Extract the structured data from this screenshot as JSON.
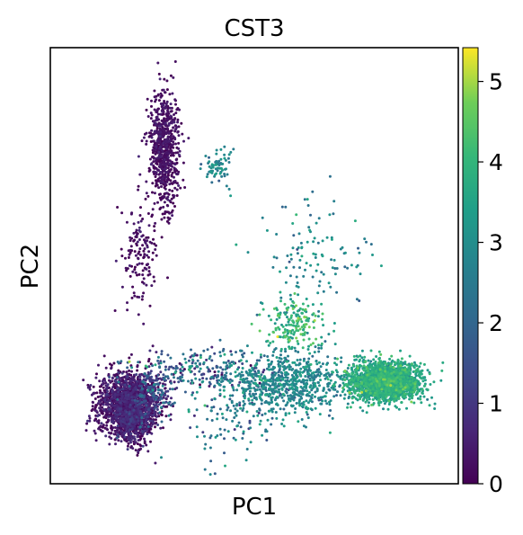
{
  "chart_data": {
    "type": "scatter",
    "title": "CST3",
    "xlabel": "PC1",
    "ylabel": "PC2",
    "x_ticks_visible": false,
    "y_ticks_visible": false,
    "grid": false,
    "legend": "none",
    "color_variable": "CST3",
    "colormap": "viridis",
    "colorbar": {
      "placement": "right",
      "range": [
        0,
        5.42
      ],
      "ticks": [
        0,
        1,
        2,
        3,
        4,
        5
      ],
      "tick_labels": [
        "0",
        "1",
        "2",
        "3",
        "4",
        "5"
      ]
    },
    "xlim": [
      0,
      100
    ],
    "ylim": [
      0,
      100
    ],
    "clusters": [
      {
        "name_hint": "A",
        "center": [
          19,
          18.5
        ],
        "spread": [
          3.8,
          3.6
        ],
        "n": 1500,
        "value_mean": 0.25,
        "value_sd": 0.35
      },
      {
        "name_hint": "B",
        "center": [
          20.5,
          14
        ],
        "spread": [
          2.2,
          3.0
        ],
        "n": 420,
        "value_mean": 0.35,
        "value_sd": 0.4
      },
      {
        "name_hint": "C",
        "center": [
          25,
          20.5
        ],
        "spread": [
          2.5,
          2.5
        ],
        "n": 160,
        "value_mean": 1.2,
        "value_sd": 0.7
      },
      {
        "name_hint": "D",
        "center": [
          28,
          77
        ],
        "spread": [
          1.8,
          6.5
        ],
        "n": 700,
        "value_mean": 0.15,
        "value_sd": 0.2
      },
      {
        "name_hint": "E",
        "center": [
          22,
          53
        ],
        "spread": [
          2.2,
          6.5
        ],
        "n": 140,
        "value_mean": 0.2,
        "value_sd": 0.2
      },
      {
        "name_hint": "F",
        "center": [
          41,
          73
        ],
        "spread": [
          1.5,
          2.0
        ],
        "n": 70,
        "value_mean": 2.8,
        "value_sd": 0.35
      },
      {
        "name_hint": "G",
        "center": [
          58,
          23
        ],
        "spread": [
          7.0,
          3.5
        ],
        "n": 700,
        "value_mean": 2.75,
        "value_sd": 0.45
      },
      {
        "name_hint": "H",
        "center": [
          82,
          23.5
        ],
        "spread": [
          4.5,
          2.2
        ],
        "n": 1900,
        "value_mean": 3.55,
        "value_sd": 0.4
      },
      {
        "name_hint": "I",
        "center": [
          60,
          36.5
        ],
        "spread": [
          3.5,
          2.8
        ],
        "n": 170,
        "value_mean": 3.9,
        "value_sd": 0.5
      },
      {
        "name_hint": "J",
        "center": [
          37,
          26
        ],
        "spread": [
          9.0,
          2.5
        ],
        "n": 230,
        "value_mean": 1.8,
        "value_sd": 1.0
      },
      {
        "name_hint": "K",
        "center": [
          44,
          17
        ],
        "spread": [
          6.0,
          6.0
        ],
        "n": 150,
        "value_mean": 2.5,
        "value_sd": 0.7
      },
      {
        "name_hint": "L",
        "center": [
          64,
          52
        ],
        "spread": [
          7.0,
          7.0
        ],
        "n": 120,
        "value_mean": 2.9,
        "value_sd": 0.5
      }
    ]
  }
}
